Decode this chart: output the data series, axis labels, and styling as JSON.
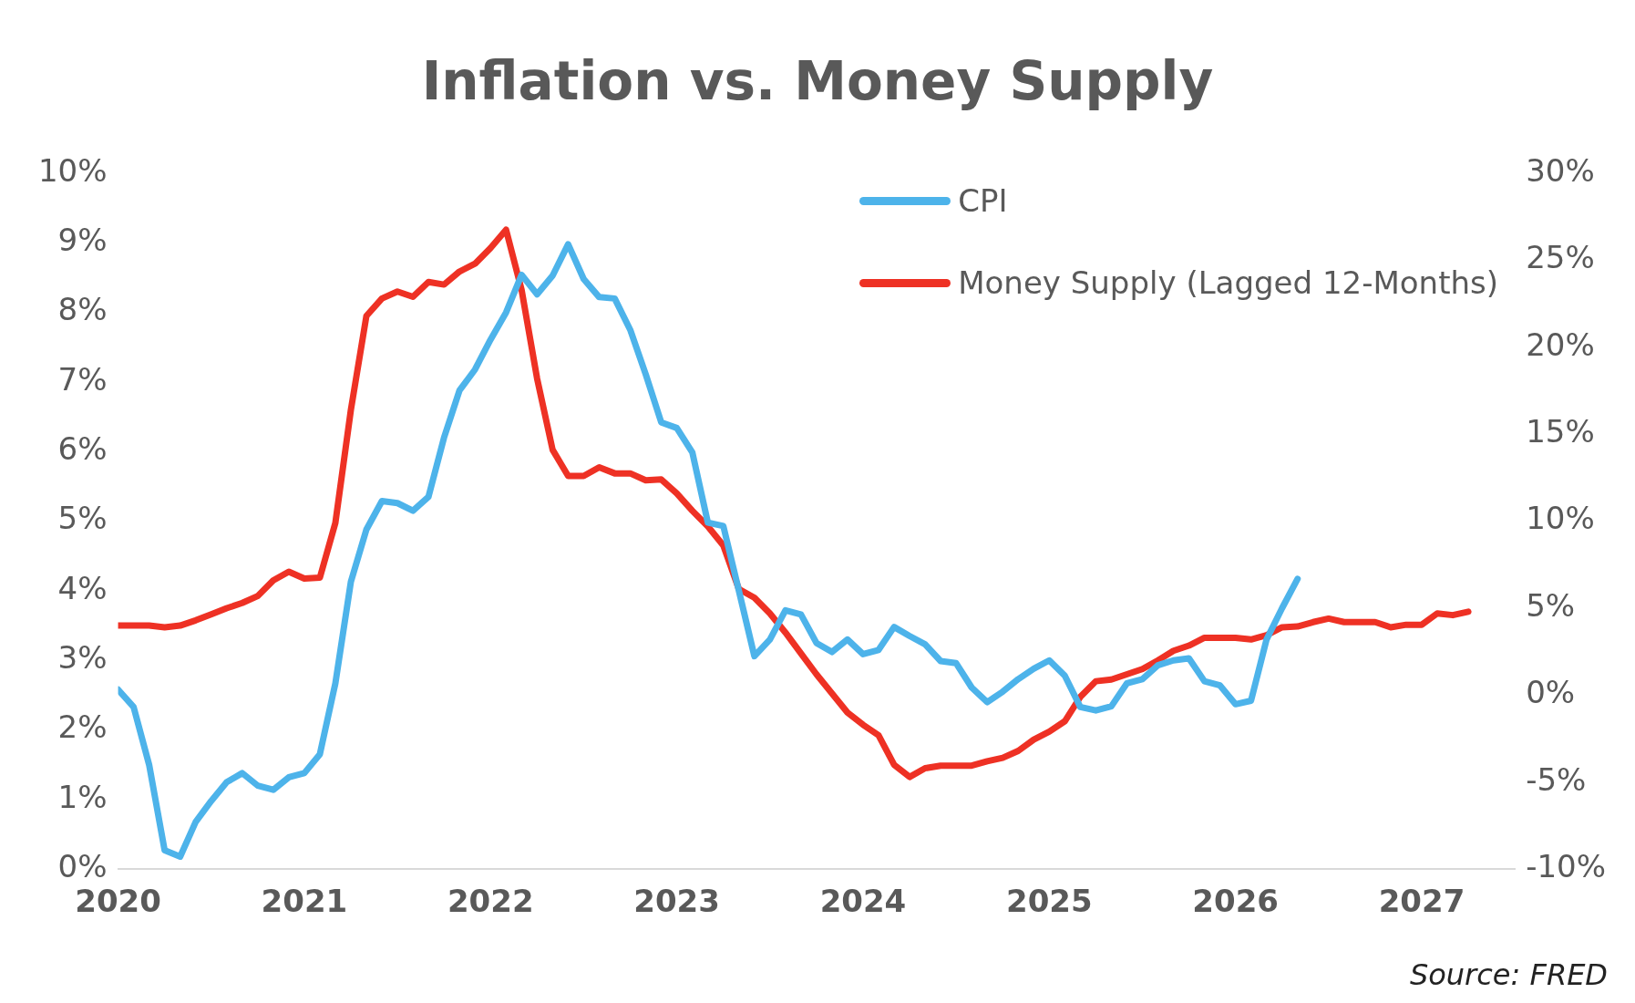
{
  "chart_data": {
    "type": "line",
    "title": "Inflation vs. Money Supply",
    "annotations": [
      "Source: FRED"
    ],
    "x": [
      "2020-01",
      "2020-02",
      "2020-03",
      "2020-04",
      "2020-05",
      "2020-06",
      "2020-07",
      "2020-08",
      "2020-09",
      "2020-10",
      "2020-11",
      "2020-12",
      "2021-01",
      "2021-02",
      "2021-03",
      "2021-04",
      "2021-05",
      "2021-06",
      "2021-07",
      "2021-08",
      "2021-09",
      "2021-10",
      "2021-11",
      "2021-12",
      "2022-01",
      "2022-02",
      "2022-03",
      "2022-04",
      "2022-05",
      "2022-06",
      "2022-07",
      "2022-08",
      "2022-09",
      "2022-10",
      "2022-11",
      "2022-12",
      "2023-01",
      "2023-02",
      "2023-03",
      "2023-04",
      "2023-05",
      "2023-06",
      "2023-07",
      "2023-08",
      "2023-09",
      "2023-10",
      "2023-11",
      "2023-12",
      "2024-01",
      "2024-02",
      "2024-03",
      "2024-04",
      "2024-05",
      "2024-06",
      "2024-07",
      "2024-08",
      "2024-09",
      "2024-10",
      "2024-11",
      "2024-12",
      "2025-01",
      "2025-02",
      "2025-03",
      "2025-04",
      "2025-05",
      "2025-06",
      "2025-07",
      "2025-08",
      "2025-09",
      "2025-10",
      "2025-11",
      "2025-12",
      "2026-01",
      "2026-02",
      "2026-03",
      "2026-04",
      "2026-05",
      "2026-06",
      "2026-07",
      "2026-08",
      "2026-09",
      "2026-10",
      "2026-11",
      "2026-12",
      "2027-01",
      "2027-02",
      "2027-03",
      "2027-04"
    ],
    "series": [
      {
        "name": "CPI",
        "color": "#4db3ea",
        "values": [
          2.58,
          2.33,
          1.5,
          0.27,
          0.18,
          0.68,
          0.98,
          1.25,
          1.38,
          1.2,
          1.14,
          1.32,
          1.38,
          1.65,
          2.67,
          4.13,
          4.88,
          5.29,
          5.26,
          5.15,
          5.35,
          6.2,
          6.88,
          7.18,
          7.61,
          8.0,
          8.54,
          8.26,
          8.53,
          8.98,
          8.48,
          8.22,
          8.2,
          7.75,
          7.11,
          6.42,
          6.34,
          5.99,
          4.98,
          4.93,
          4.0,
          3.06,
          3.3,
          3.72,
          3.66,
          3.25,
          3.12,
          3.3,
          3.09,
          3.15,
          3.48,
          3.35,
          3.23,
          2.99,
          2.96,
          2.61,
          2.4,
          2.55,
          2.73,
          2.88,
          3.0,
          2.78,
          2.33,
          2.28,
          2.34,
          2.67,
          2.73,
          2.93,
          3.0,
          3.03,
          2.7,
          2.64,
          2.37,
          2.42,
          3.3,
          3.75,
          4.17,
          null,
          null,
          null,
          null,
          null,
          null,
          null,
          null,
          null,
          null,
          null
        ]
      },
      {
        "name": "Money Supply (Lagged 12-Months)",
        "color": "#ee3124",
        "axis": "y2",
        "values": [
          4.0,
          4.0,
          4.0,
          3.9,
          4.0,
          4.3,
          4.65,
          5.0,
          5.3,
          5.7,
          6.6,
          7.1,
          6.7,
          6.75,
          9.9,
          16.4,
          21.8,
          22.8,
          23.2,
          22.9,
          23.75,
          23.6,
          24.35,
          24.8,
          25.7,
          26.75,
          23.3,
          18.2,
          14.1,
          12.6,
          12.6,
          13.1,
          12.75,
          12.75,
          12.35,
          12.4,
          11.6,
          10.6,
          9.7,
          8.6,
          6.1,
          5.6,
          4.7,
          3.6,
          2.4,
          1.2,
          0.1,
          -1.0,
          -1.7,
          -2.3,
          -4.0,
          -4.7,
          -4.2,
          -4.05,
          -4.05,
          -4.05,
          -3.8,
          -3.6,
          -3.2,
          -2.55,
          -2.1,
          -1.5,
          -0.1,
          0.8,
          0.9,
          1.2,
          1.5,
          2.0,
          2.55,
          2.85,
          3.3,
          3.3,
          3.3,
          3.2,
          3.45,
          3.9,
          3.95,
          4.2,
          4.4,
          4.2,
          4.2,
          4.2,
          3.9,
          4.05,
          4.05,
          4.7,
          4.6,
          4.8
        ]
      }
    ],
    "xlim": [
      "2020-01",
      "2027-07"
    ],
    "xticks": [
      "2020",
      "2021",
      "2022",
      "2023",
      "2024",
      "2025",
      "2026",
      "2027"
    ],
    "ylim": [
      0,
      10
    ],
    "yticks": [
      {
        "value": 0,
        "label": "0%"
      },
      {
        "value": 1,
        "label": "1%"
      },
      {
        "value": 2,
        "label": "2%"
      },
      {
        "value": 3,
        "label": "3%"
      },
      {
        "value": 4,
        "label": "4%"
      },
      {
        "value": 5,
        "label": "5%"
      },
      {
        "value": 6,
        "label": "6%"
      },
      {
        "value": 7,
        "label": "7%"
      },
      {
        "value": 8,
        "label": "8%"
      },
      {
        "value": 9,
        "label": "9%"
      },
      {
        "value": 10,
        "label": "10%"
      }
    ],
    "y2lim": [
      -10,
      30
    ],
    "y2ticks": [
      {
        "value": -10,
        "label": "-10%"
      },
      {
        "value": -5,
        "label": "-5%"
      },
      {
        "value": 0,
        "label": "0%"
      },
      {
        "value": 5,
        "label": "5%"
      },
      {
        "value": 10,
        "label": "10%"
      },
      {
        "value": 15,
        "label": "15%"
      },
      {
        "value": 20,
        "label": "20%"
      },
      {
        "value": 25,
        "label": "25%"
      },
      {
        "value": 30,
        "label": "30%"
      }
    ],
    "grid": false,
    "legend": "top right",
    "marker": "none",
    "line_style": "solid"
  }
}
